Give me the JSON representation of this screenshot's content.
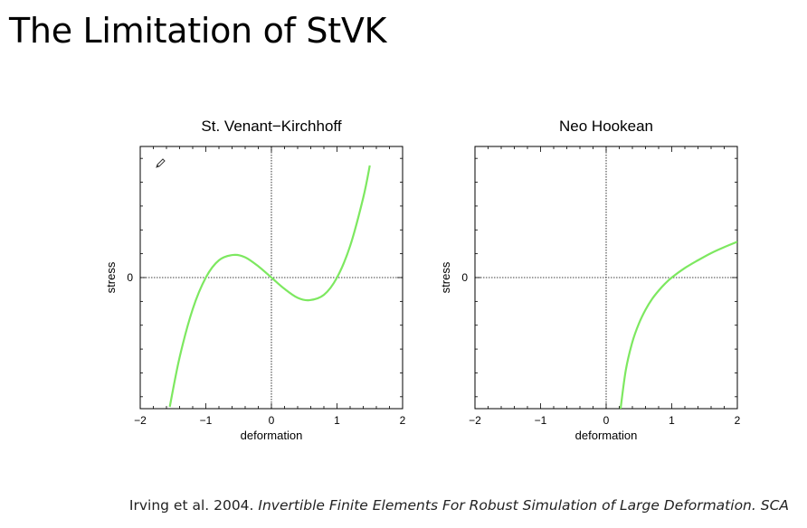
{
  "slide": {
    "title": "The Limitation of StVK"
  },
  "citation": {
    "prefix": "Irving et al. 2004. ",
    "italic": "Invertible Finite Elements For Robust Simulation of Large Deformation. SCA"
  },
  "colors": {
    "curve": "#7de860",
    "axes": "#000000",
    "title": "#000000"
  },
  "chart_data": [
    {
      "type": "line",
      "title": "St. Venant−Kirchhoff",
      "xlabel": "deformation",
      "ylabel": "stress",
      "xlim": [
        -2,
        2
      ],
      "ylim": [
        -2.2,
        2.2
      ],
      "xticks": [
        "−2",
        "−1",
        "0",
        "1",
        "2"
      ],
      "yticks": [
        "0"
      ],
      "series": [
        {
          "x": [
            -1.55,
            -1.4,
            -1.2,
            -1.0,
            -0.8,
            -0.577,
            -0.4,
            -0.2,
            0,
            0.2,
            0.4,
            0.577,
            0.8,
            1.0,
            1.2,
            1.4,
            1.5
          ],
          "values": [
            -2.17,
            -1.34,
            -0.53,
            0.0,
            0.29,
            0.38,
            0.34,
            0.19,
            0.0,
            -0.19,
            -0.34,
            -0.38,
            -0.29,
            0.0,
            0.53,
            1.34,
            1.88
          ]
        }
      ]
    },
    {
      "type": "line",
      "title": "Neo Hookean",
      "xlabel": "deformation",
      "ylabel": "stress",
      "xlim": [
        -2,
        2
      ],
      "ylim": [
        -2.2,
        2.2
      ],
      "xticks": [
        "−2",
        "−1",
        "0",
        "1",
        "2"
      ],
      "yticks": [
        "0"
      ],
      "series": [
        {
          "x": [
            0.22,
            0.3,
            0.4,
            0.5,
            0.6,
            0.7,
            0.8,
            0.9,
            1.0,
            1.2,
            1.4,
            1.6,
            1.8,
            2.0
          ],
          "values": [
            -2.2,
            -1.55,
            -1.08,
            -0.77,
            -0.54,
            -0.36,
            -0.22,
            -0.1,
            0.0,
            0.16,
            0.29,
            0.41,
            0.51,
            0.6
          ]
        }
      ]
    }
  ]
}
